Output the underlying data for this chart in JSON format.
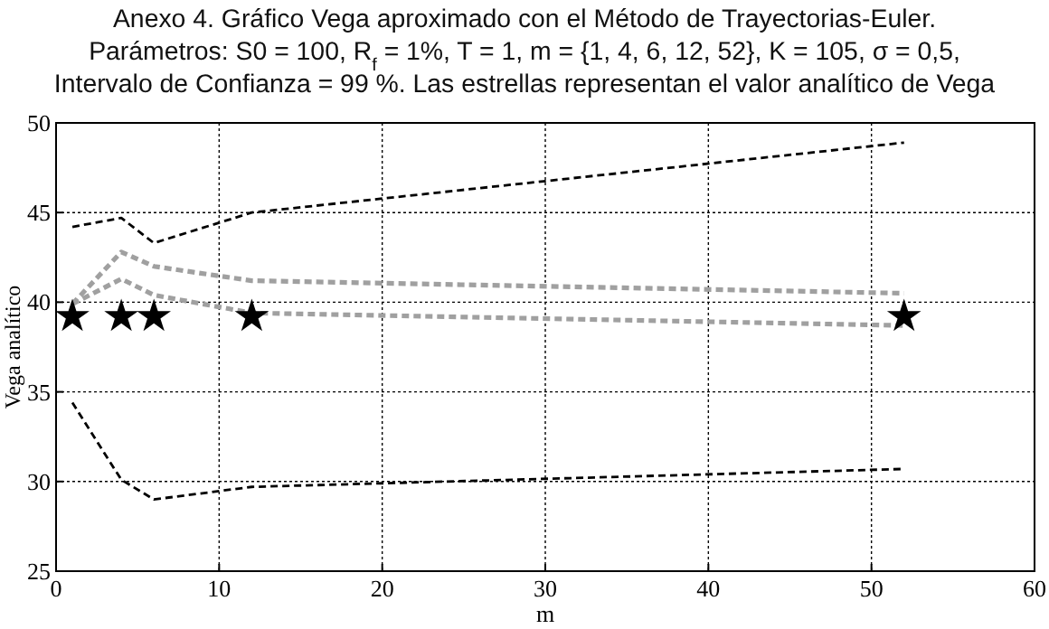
{
  "chart_data": {
    "type": "line",
    "title": "Anexo 4. Gráfico Vega aproximado con el Método de Trayectorias-Euler.",
    "subtitle": "Parámetros: S0 = 100, R$_{f}$ = 1%, T = 1, m = {1, 4, 6, 12, 52}, K = 105, σ = 0,5,\nIntervalo de Confianza = 99 %. Las estrellas representan el valor analítico de Vega",
    "xlabel": "m",
    "ylabel": "Vega analítico",
    "x": [
      1,
      4,
      6,
      12,
      52
    ],
    "series": [
      {
        "color": "#000000",
        "line_style": "dashed",
        "marker": "none",
        "values": [
          44.2,
          44.7,
          43.3,
          45.0,
          48.9
        ]
      },
      {
        "color": "#a0a0a0",
        "line_style": "dashed",
        "marker": "none",
        "values": [
          39.9,
          42.8,
          42.0,
          41.2,
          40.5
        ]
      },
      {
        "color": "#a0a0a0",
        "line_style": "dashed",
        "marker": "none",
        "values": [
          39.9,
          41.3,
          40.4,
          39.4,
          38.7
        ]
      },
      {
        "color": "#000000",
        "line_style": "dashed",
        "marker": "none",
        "values": [
          34.4,
          30.1,
          29.0,
          29.7,
          30.7
        ]
      },
      {
        "type": "scatter",
        "color": "#000000",
        "marker": "star",
        "values": [
          39.2,
          39.2,
          39.2,
          39.2,
          39.2
        ]
      }
    ],
    "xlim": [
      0,
      60
    ],
    "xticks": [
      0,
      10,
      20,
      30,
      40,
      50,
      60
    ],
    "ylim": [
      25,
      50
    ],
    "yticks": [
      25,
      30,
      35,
      40,
      45,
      50
    ],
    "grid": true
  }
}
